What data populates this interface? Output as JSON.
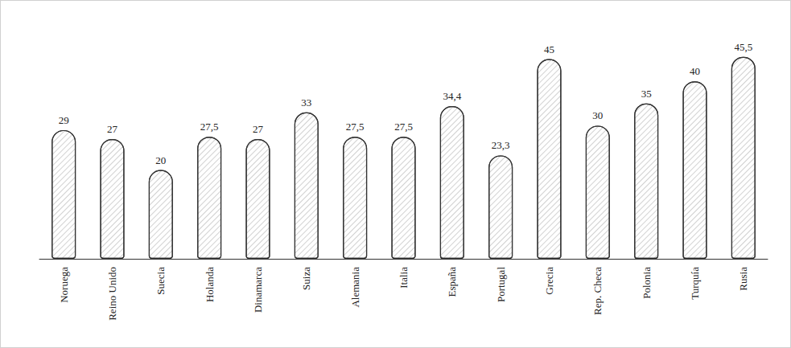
{
  "chart_data": {
    "type": "bar",
    "categories": [
      "Noruega",
      "Reino Unido",
      "Suecia",
      "Holanda",
      "Dinamarca",
      "Suiza",
      "Alemania",
      "Italia",
      "España",
      "Portugal",
      "Grecia",
      "Rep. Checa",
      "Polonia",
      "Turquía",
      "Rusia"
    ],
    "values": [
      29,
      27,
      20,
      27.5,
      27,
      33,
      27.5,
      27.5,
      34.4,
      23.3,
      45,
      30,
      35,
      40,
      45.5
    ],
    "value_labels": [
      "29",
      "27",
      "20",
      "27,5",
      "27",
      "33",
      "27,5",
      "27,5",
      "34,4",
      "23,3",
      "45",
      "30",
      "35",
      "40",
      "45,5"
    ],
    "color": "#ffffff",
    "data_labels": true,
    "tick_labels": "x",
    "grid": false
  }
}
